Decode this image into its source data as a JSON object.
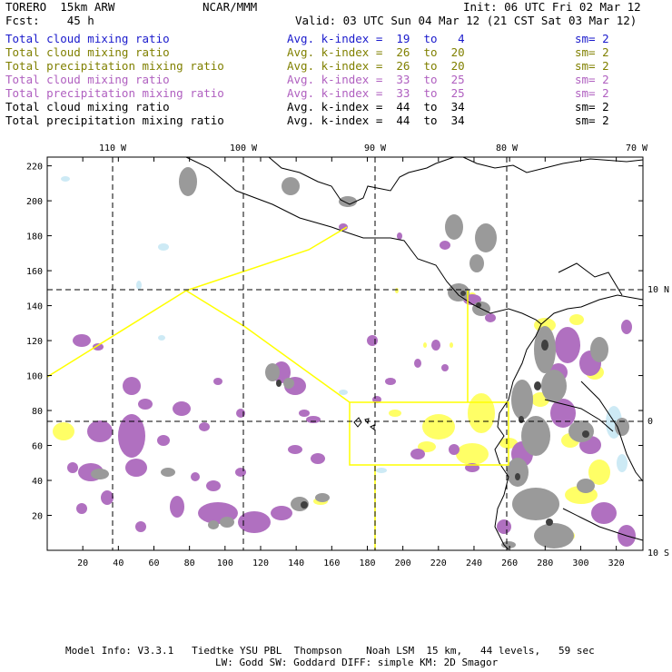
{
  "header": {
    "model": "TORERO  15km ARW",
    "org": "NCAR/MMM",
    "init": "Init: 06 UTC Fri 02 Mar 12",
    "fcst": "Fcst:    45 h",
    "valid": "Valid: 03 UTC Sun 04 Mar 12 (21 CST Sat 03 Mar 12)"
  },
  "legend": [
    {
      "field": "Total cloud mixing ratio",
      "index": "Avg. k-index =  19  to   4",
      "sm": "sm= 2",
      "color": "#1a1acc"
    },
    {
      "field": "Total cloud mixing ratio",
      "index": "Avg. k-index =  26  to  20",
      "sm": "sm= 2",
      "color": "#808000"
    },
    {
      "field": "Total precipitation mixing ratio",
      "index": "Avg. k-index =  26  to  20",
      "sm": "sm= 2",
      "color": "#808000"
    },
    {
      "field": "Total cloud mixing ratio",
      "index": "Avg. k-index =  33  to  25",
      "sm": "sm= 2",
      "color": "#b060c0"
    },
    {
      "field": "Total precipitation mixing ratio",
      "index": "Avg. k-index =  33  to  25",
      "sm": "sm= 2",
      "color": "#b060c0"
    },
    {
      "field": "Total cloud mixing ratio",
      "index": "Avg. k-index =  44  to  34",
      "sm": "sm= 2",
      "color": "#000000"
    },
    {
      "field": "Total precipitation mixing ratio",
      "index": "Avg. k-index =  44  to  34",
      "sm": "sm= 2",
      "color": "#000000"
    }
  ],
  "axes": {
    "x_ticks": [
      "20",
      "40",
      "60",
      "80",
      "100",
      "120",
      "140",
      "160",
      "180",
      "200",
      "220",
      "240",
      "260",
      "280",
      "300",
      "320"
    ],
    "y_ticks": [
      "20",
      "40",
      "60",
      "80",
      "100",
      "120",
      "140",
      "160",
      "180",
      "200",
      "220"
    ],
    "lon_labels": [
      "110 W",
      "100 W",
      "90 W",
      "80 W",
      "70 W"
    ],
    "lat_labels": [
      "10 N",
      "0",
      "10 S"
    ],
    "x_range": [
      0,
      335
    ],
    "y_range": [
      0,
      225
    ]
  },
  "footer": {
    "line1": "Model Info: V3.3.1   Tiedtke YSU PBL  Thompson    Noah LSM  15 km,   44 levels,   59 sec",
    "line2": "LW: Godd SW: Goddard DIFF: simple KM: 2D Smagor"
  },
  "colors": {
    "cloud_low": "#c8e8f4",
    "cloud_mid": "#ffff66",
    "precip_mid": "#ffff66",
    "cloud_high": "#b070c0",
    "cloud_vhigh": "#9a9a9a",
    "precip_vhigh": "#404040",
    "domain_box": "#ffff00"
  }
}
